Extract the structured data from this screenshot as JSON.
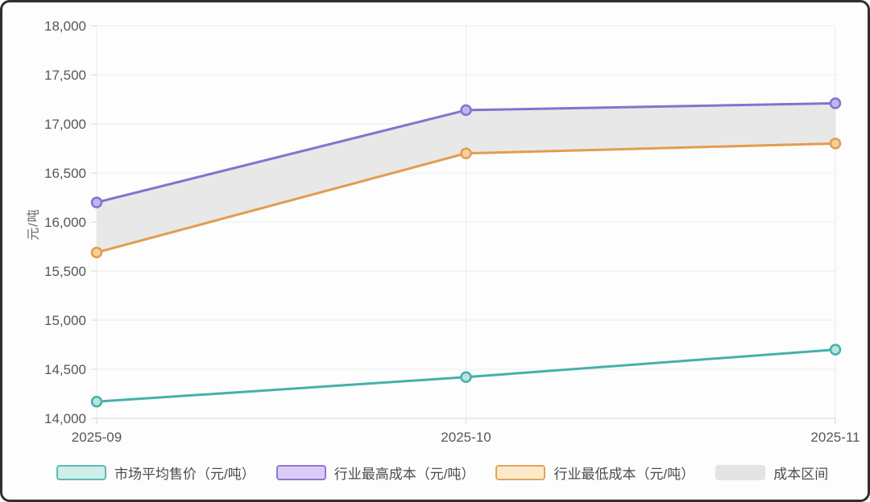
{
  "chart_data": {
    "type": "line",
    "title": "",
    "xlabel": "",
    "ylabel": "元/吨",
    "x": [
      "2025-09",
      "2025-10",
      "2025-11"
    ],
    "ylim": [
      14000,
      18000
    ],
    "ytick_step": 500,
    "grid": true,
    "legend_position": "bottom",
    "series": [
      {
        "name": "市场平均售价（元/吨）",
        "values": [
          14170,
          14420,
          14700
        ],
        "color": "#45b0a9",
        "marker_fill": "#b9e4e0",
        "legend_fill": "#cdeee9",
        "legend_border": "#62bab3"
      },
      {
        "name": "行业最高成本（元/吨）",
        "values": [
          16200,
          17140,
          17210
        ],
        "color": "#8273cf",
        "marker_fill": "#c3b4ee",
        "legend_fill": "#dacdf5",
        "legend_border": "#9079d2"
      },
      {
        "name": "行业最低成本（元/吨）",
        "values": [
          15690,
          16700,
          16800
        ],
        "color": "#e39c4f",
        "marker_fill": "#f5d09c",
        "legend_fill": "#fce9c9",
        "legend_border": "#e2a55e"
      }
    ],
    "band": {
      "name": "成本区间",
      "upper_series": 1,
      "lower_series": 2,
      "color": "#e2e2e2",
      "opacity": 0.78,
      "legend_fill": "#e4e4e4"
    },
    "axis_colors": {
      "grid": "#ececec",
      "axis_line": "#d6d6d6",
      "tick_text": "#575757"
    }
  }
}
